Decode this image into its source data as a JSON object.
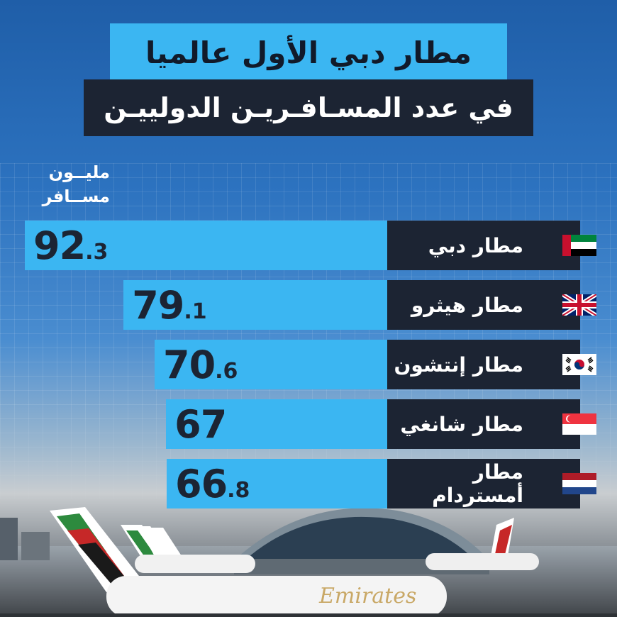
{
  "header": {
    "title": "مطار دبي الأول عالميا",
    "subtitle": "في عدد المسـافـريـن الدولييـن"
  },
  "unit": {
    "line1": "مليــون",
    "line2": "مســافر"
  },
  "colors": {
    "bar": "#3bb6f2",
    "label_bg": "#1c2433",
    "title_bg": "#3bb6f2",
    "subtitle_bg": "#1c2433"
  },
  "chart_data": {
    "type": "bar",
    "orientation": "horizontal",
    "categories": [
      "مطار دبي",
      "مطار هيثرو",
      "مطار إنتشون",
      "مطار شانغي",
      "مطار أمستردام"
    ],
    "values": [
      92.3,
      79.1,
      70.6,
      67,
      66.8
    ],
    "flags": [
      "uae-flag-icon",
      "uk-flag-icon",
      "south-korea-flag-icon",
      "singapore-flag-icon",
      "netherlands-flag-icon"
    ],
    "title": "مطار دبي الأول عالميا",
    "subtitle": "في عدد المسـافـريـن الدولييـن",
    "unit_label": "مليــون مســافر",
    "grid": true,
    "legend": "none"
  }
}
